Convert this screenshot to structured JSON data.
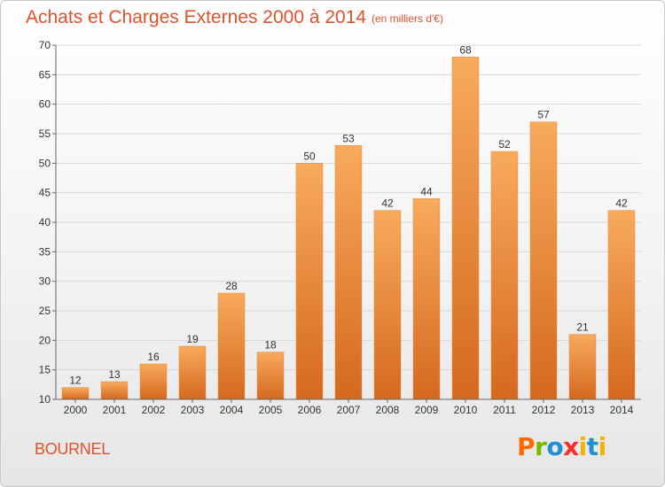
{
  "header": {
    "title": "Achats et Charges Externes 2000 à 2014",
    "subtitle": "(en milliers d'€)"
  },
  "footer": {
    "commune": "BOURNEL",
    "brand": "Proxiti",
    "brand_colors": [
      "#ff6a00",
      "#7ab800",
      "#1f8fd6",
      "#ff2a2a",
      "#f2b400",
      "#1f8fd6",
      "#f2b400"
    ]
  },
  "colors": {
    "bar_top": "#f8aa5c",
    "bar_bottom": "#d4691f",
    "bar_stroke": "#e8893a",
    "grid": "#d8d8d8",
    "axis": "#666666"
  },
  "chart_data": {
    "type": "bar",
    "categories": [
      "2000",
      "2001",
      "2002",
      "2003",
      "2004",
      "2005",
      "2006",
      "2007",
      "2008",
      "2009",
      "2010",
      "2011",
      "2012",
      "2013",
      "2014"
    ],
    "values": [
      12,
      13,
      16,
      19,
      28,
      18,
      50,
      53,
      42,
      44,
      68,
      52,
      57,
      21,
      42
    ],
    "title": "Achats et Charges Externes 2000 à 2014",
    "subtitle": "(en milliers d'€)",
    "xlabel": "",
    "ylabel": "",
    "ylim": [
      10,
      70
    ],
    "yticks": [
      10,
      15,
      20,
      25,
      30,
      35,
      40,
      45,
      50,
      55,
      60,
      65,
      70
    ],
    "grid": true,
    "legend": "none"
  }
}
